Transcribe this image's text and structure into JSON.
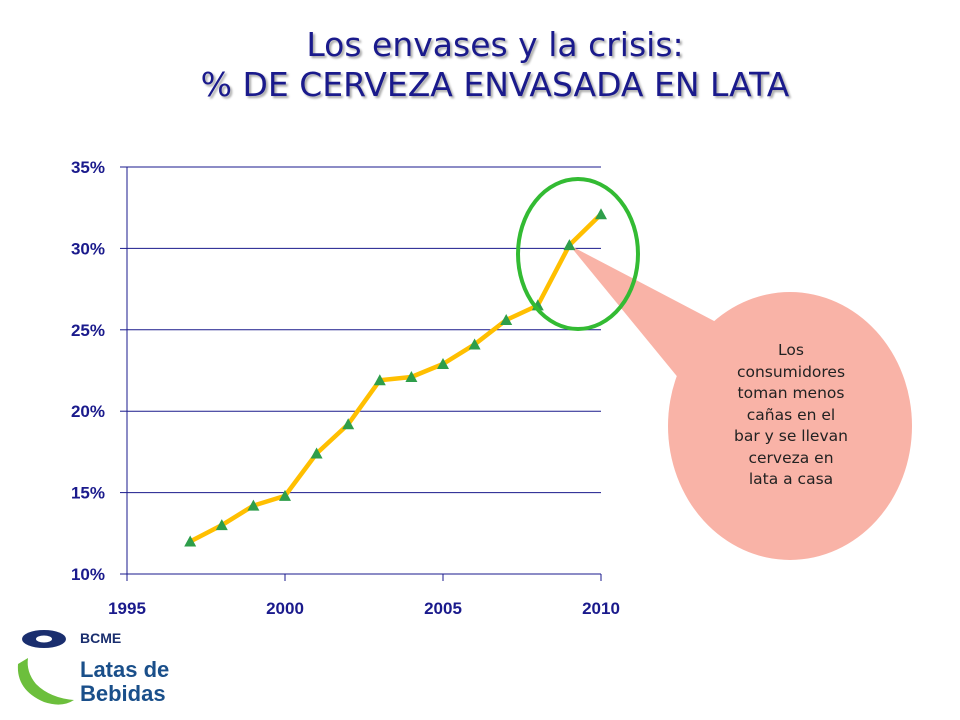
{
  "header": {
    "title_line1": "Los envases y la crisis:",
    "title_line2": "% DE CERVEZA ENVASADA EN LATA"
  },
  "callout": {
    "text_lines": [
      "Los",
      "consumidores",
      "toman menos",
      "cañas en el",
      "bar y se llevan",
      "cerveza en",
      "lata a casa"
    ]
  },
  "logo": {
    "brand": "BCME",
    "line1": "Latas de",
    "line2": "Bebidas"
  },
  "chart_data": {
    "type": "line",
    "title": "",
    "xlabel": "",
    "ylabel": "",
    "x": [
      1997,
      1998,
      1999,
      2000,
      2001,
      2002,
      2003,
      2004,
      2005,
      2006,
      2007,
      2008,
      2009,
      2010
    ],
    "series": [
      {
        "values": [
          12.0,
          13.0,
          14.2,
          14.8,
          17.4,
          19.2,
          21.9,
          22.1,
          22.9,
          24.1,
          25.6,
          26.5,
          30.2,
          32.1
        ]
      }
    ],
    "xlim": [
      1995,
      2010
    ],
    "ylim": [
      10,
      35
    ],
    "x_ticks": [
      1995,
      2000,
      2005,
      2010
    ],
    "x_tick_labels": [
      "1995",
      "2000",
      "2005",
      "2010"
    ],
    "y_ticks": [
      10,
      15,
      20,
      25,
      30,
      35
    ],
    "y_tick_labels": [
      "10%",
      "15%",
      "20%",
      "25%",
      "30%",
      "35%"
    ],
    "grid": "horizontal",
    "highlight_point_x": 2009,
    "colors": {
      "line": "#ffbf00",
      "marker": "#2e9e4a",
      "highlight": "#33bb33",
      "callout": "#f9b3a7",
      "axis": "#1a1a8c"
    }
  }
}
